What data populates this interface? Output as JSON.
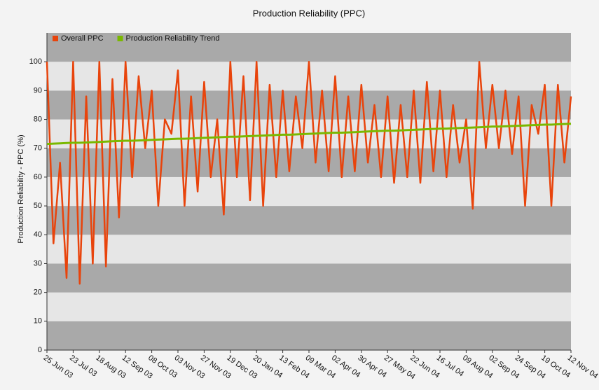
{
  "chart_data": {
    "type": "line",
    "title": "Production Reliability (PPC)",
    "y_label": "Production Reliability - PPC (%)",
    "categories": [
      "25 Jun 03",
      null,
      null,
      null,
      "23 Jul 03",
      null,
      null,
      null,
      "18 Aug 03",
      null,
      null,
      null,
      "12 Sep 03",
      null,
      null,
      null,
      "08 Oct 03",
      null,
      null,
      null,
      "03 Nov 03",
      null,
      null,
      null,
      "27 Nov 03",
      null,
      null,
      null,
      "19 Dec 03",
      null,
      null,
      null,
      "20 Jan 04",
      null,
      null,
      null,
      "13 Feb 04",
      null,
      null,
      null,
      "09 Mar 04",
      null,
      null,
      null,
      "02 Apr 04",
      null,
      null,
      null,
      "30 Apr 04",
      null,
      null,
      null,
      "27 May 04",
      null,
      null,
      null,
      "22 Jun 04",
      null,
      null,
      null,
      "16 Jul 04",
      null,
      null,
      null,
      "09 Aug 04",
      null,
      null,
      null,
      "02 Sep 04",
      null,
      null,
      null,
      "24 Sep 04",
      null,
      null,
      null,
      "19 Oct 04",
      null,
      null,
      null,
      "12 Nov 04"
    ],
    "series": [
      {
        "name": "Overall PPC",
        "color": "#e8440c",
        "values": [
          100,
          37,
          65,
          25,
          100,
          23,
          88,
          30,
          100,
          29,
          94,
          46,
          100,
          60,
          95,
          70,
          90,
          50,
          80,
          75,
          97,
          50,
          88,
          55,
          93,
          60,
          80,
          47,
          100,
          60,
          95,
          52,
          100,
          50,
          92,
          60,
          90,
          62,
          88,
          70,
          100,
          65,
          90,
          62,
          95,
          60,
          88,
          62,
          92,
          65,
          85,
          60,
          88,
          58,
          85,
          60,
          90,
          58,
          93,
          62,
          90,
          60,
          85,
          65,
          80,
          49,
          100,
          70,
          92,
          70,
          90,
          68,
          88,
          50,
          85,
          75,
          92,
          50,
          92,
          65,
          88
        ]
      },
      {
        "name": "Production Reliability Trend",
        "color": "#7ab800",
        "values": [
          71.5,
          71.6,
          71.7,
          71.8,
          71.9,
          71.9,
          72.0,
          72.1,
          72.2,
          72.3,
          72.4,
          72.5,
          72.6,
          72.6,
          72.7,
          72.8,
          72.9,
          73.0,
          73.1,
          73.2,
          73.3,
          73.3,
          73.4,
          73.5,
          73.6,
          73.7,
          73.8,
          73.9,
          74.0,
          74.0,
          74.1,
          74.2,
          74.3,
          74.4,
          74.5,
          74.6,
          74.7,
          74.7,
          74.8,
          74.9,
          75.0,
          75.1,
          75.2,
          75.3,
          75.4,
          75.4,
          75.5,
          75.6,
          75.7,
          75.8,
          75.9,
          76.0,
          76.1,
          76.1,
          76.2,
          76.3,
          76.4,
          76.5,
          76.6,
          76.7,
          76.8,
          76.8,
          76.9,
          77.0,
          77.1,
          77.2,
          77.3,
          77.4,
          77.5,
          77.5,
          77.6,
          77.7,
          77.8,
          77.9,
          78.0,
          78.1,
          78.2,
          78.2,
          78.3,
          78.4,
          78.5
        ]
      }
    ],
    "ylim": [
      0,
      110
    ],
    "yticks": [
      0,
      10,
      20,
      30,
      40,
      50,
      60,
      70,
      80,
      90,
      100
    ],
    "grid": true,
    "legend": "upper left"
  }
}
